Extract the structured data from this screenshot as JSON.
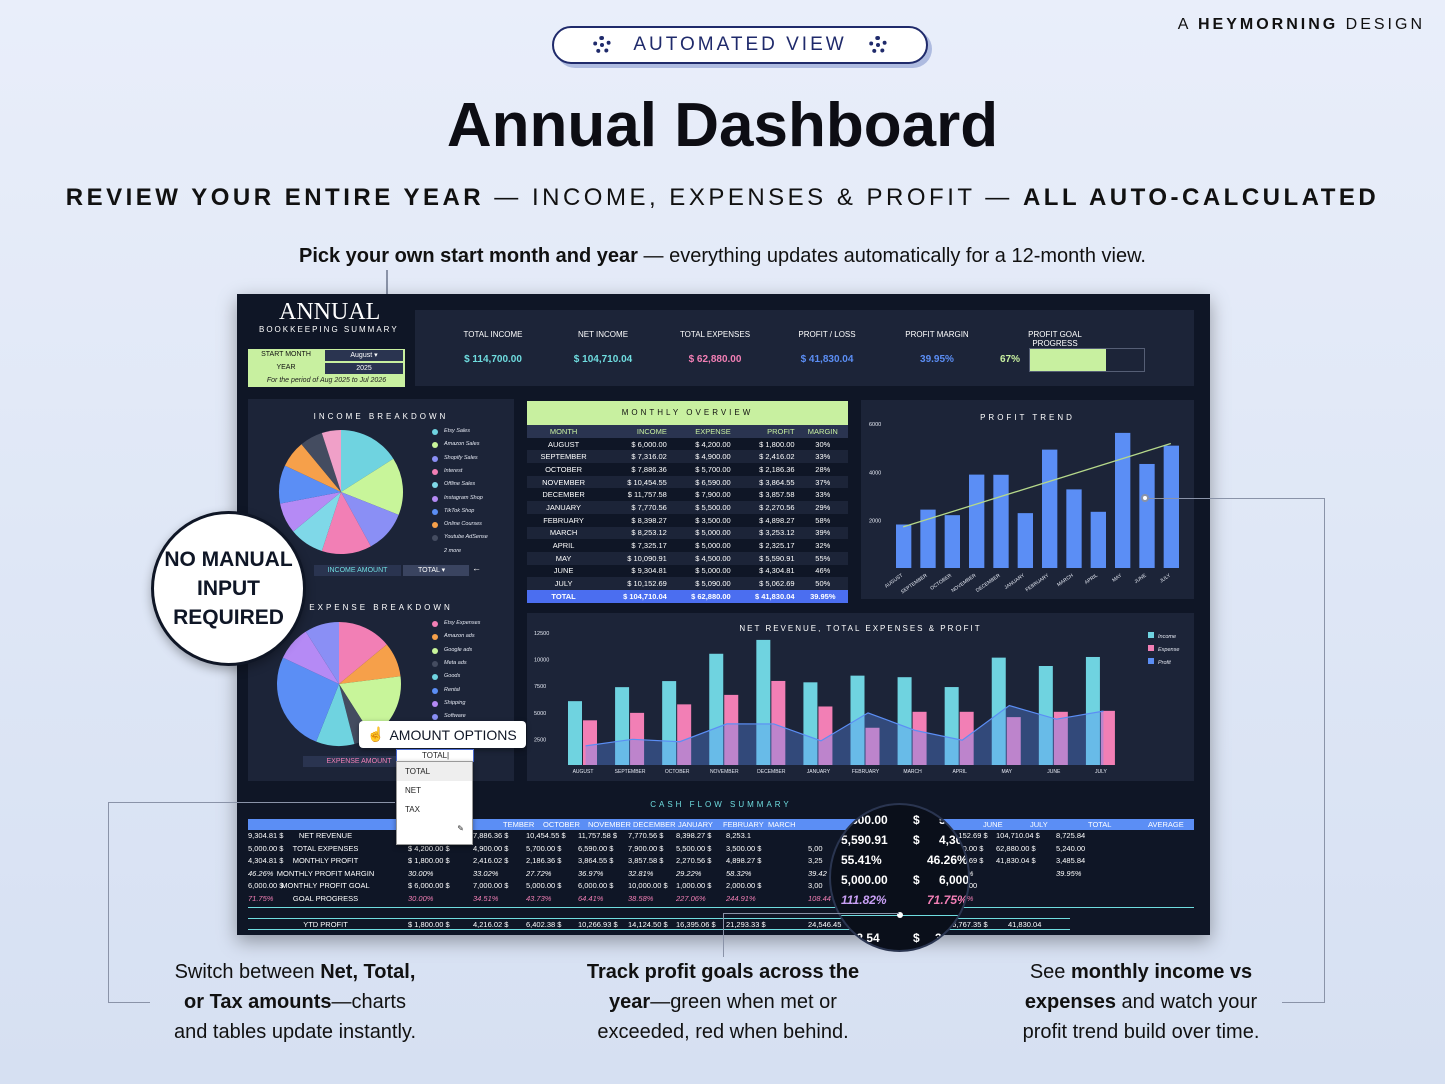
{
  "header": {
    "pill_label": "AUTOMATED VIEW",
    "brand_prefix": "A",
    "brand_name": "HEYMORNING",
    "brand_suffix": "DESIGN",
    "title": "Annual Dashboard",
    "subtitle_bold_1": "REVIEW YOUR ENTIRE YEAR",
    "subtitle_sep_1": " — ",
    "subtitle_mid": "INCOME, EXPENSES & PROFIT",
    "subtitle_sep_2": " — ",
    "subtitle_bold_2": "ALL AUTO-CALCULATED",
    "pick_bold": "Pick your own start month and year",
    "pick_rest": " — everything updates automatically for a 12-month view."
  },
  "dashboard": {
    "brand_title": "ANNUAL",
    "brand_sub": "BOOKKEEPING SUMMARY",
    "start_month_label": "START MONTH",
    "start_month_value": "August",
    "year_label": "YEAR",
    "year_value": "2025",
    "period_text": "For the period of Aug 2025 to Jul 2026",
    "kpis": [
      {
        "label": "TOTAL INCOME",
        "value": "$ 114,700.00",
        "color": "#6fdde0"
      },
      {
        "label": "NET INCOME",
        "value": "$ 104,710.04",
        "color": "#6fdde0"
      },
      {
        "label": "TOTAL EXPENSES",
        "value": "$ 62,880.00",
        "color": "#f27fb5"
      },
      {
        "label": "PROFIT / LOSS",
        "value": "$ 41,830.04",
        "color": "#5b8ef5"
      },
      {
        "label": "PROFIT MARGIN",
        "value": "39.95%",
        "color": "#5b8ef5"
      },
      {
        "label": "PROFIT GOAL PROGRESS",
        "value": "67%",
        "color": "#c8f0a0"
      }
    ],
    "profit_goal_progress": 0.67,
    "income_breakdown": {
      "title": "INCOME BREAKDOWN",
      "legend": [
        "Etsy Sales",
        "Amazon Sales",
        "Shopify Sales",
        "Interest",
        "Offline Sales",
        "Instagram Shop",
        "TikTok Shop",
        "Online Courses",
        "Youtube AdSense",
        "2 more"
      ],
      "colors": [
        "#6fd3e0",
        "#c8f59a",
        "#8a8ff5",
        "#f27fb5",
        "#7fd8e8",
        "#b58af5",
        "#5b8ef5",
        "#f6a04a",
        "#444c60",
        "#f0a0c8"
      ],
      "selector_label": "INCOME AMOUNT",
      "selector_value": "TOTAL"
    },
    "expense_breakdown": {
      "title": "EXPENSE BREAKDOWN",
      "legend": [
        "Etsy Expenses",
        "Amazon ads",
        "Google ads",
        "Meta ads",
        "Goods",
        "Rental",
        "Shipping",
        "Software"
      ],
      "colors": [
        "#f27fb5",
        "#f6a04a",
        "#c8f59a",
        "#444c60",
        "#6fd3e0",
        "#5b8ef5",
        "#b58af5",
        "#8a8ff5"
      ],
      "selector_label": "EXPENSE AMOUNT",
      "selector_value": "TOTAL"
    },
    "monthly_overview": {
      "title": "MONTHLY OVERVIEW",
      "headers": [
        "MONTH",
        "INCOME",
        "EXPENSE",
        "PROFIT",
        "MARGIN"
      ],
      "rows": [
        [
          "AUGUST",
          "6,000.00",
          "4,200.00",
          "1,800.00",
          "30%"
        ],
        [
          "SEPTEMBER",
          "7,316.02",
          "4,900.00",
          "2,416.02",
          "33%"
        ],
        [
          "OCTOBER",
          "7,886.36",
          "5,700.00",
          "2,186.36",
          "28%"
        ],
        [
          "NOVEMBER",
          "10,454.55",
          "6,590.00",
          "3,864.55",
          "37%"
        ],
        [
          "DECEMBER",
          "11,757.58",
          "7,900.00",
          "3,857.58",
          "33%"
        ],
        [
          "JANUARY",
          "7,770.56",
          "5,500.00",
          "2,270.56",
          "29%"
        ],
        [
          "FEBRUARY",
          "8,398.27",
          "3,500.00",
          "4,898.27",
          "58%"
        ],
        [
          "MARCH",
          "8,253.12",
          "5,000.00",
          "3,253.12",
          "39%"
        ],
        [
          "APRIL",
          "7,325.17",
          "5,000.00",
          "2,325.17",
          "32%"
        ],
        [
          "MAY",
          "10,090.91",
          "4,500.00",
          "5,590.91",
          "55%"
        ],
        [
          "JUNE",
          "9,304.81",
          "5,000.00",
          "4,304.81",
          "46%"
        ],
        [
          "JULY",
          "10,152.69",
          "5,090.00",
          "5,062.69",
          "50%"
        ]
      ],
      "total": [
        "TOTAL",
        "104,710.04",
        "62,880.00",
        "41,830.04",
        "39.95%"
      ]
    },
    "cash_flow": {
      "title": "CASH FLOW SUMMARY",
      "headers": [
        "TEMBER",
        "OCTOBER",
        "NOVEMBER",
        "DECEMBER",
        "JANUARY",
        "FEBRUARY",
        "MARCH",
        "",
        "",
        "JUNE",
        "JULY",
        "TOTAL",
        "AVERAGE"
      ],
      "row_labels": [
        "NET REVENUE",
        "TOTAL EXPENSES",
        "MONTHLY PROFIT",
        "MONTHLY PROFIT MARGIN",
        "MONTHLY PROFIT GOAL",
        "GOAL PROGRESS"
      ],
      "rows": [
        [
          "7,316.02 $",
          "7,886.36 $",
          "10,454.55 $",
          "11,757.58 $",
          "7,770.56 $",
          "8,398.27 $",
          "8,253.1",
          "",
          "",
          "9,304.81 $",
          "10,152.69 $",
          "104,710.04 $",
          "8,725.84"
        ],
        [
          "$ 4,200.00 $",
          "4,900.00 $",
          "5,700.00 $",
          "6,590.00 $",
          "7,900.00 $",
          "5,500.00 $",
          "3,500.00 $",
          "5,00",
          "",
          "5,000.00 $",
          "5,090.00 $",
          "62,880.00 $",
          "5,240.00"
        ],
        [
          "$ 1,800.00 $",
          "2,416.02 $",
          "2,186.36 $",
          "3,864.55 $",
          "3,857.58 $",
          "2,270.56 $",
          "4,898.27 $",
          "3,25",
          "",
          "4,304.81 $",
          "5,062.69 $",
          "41,830.04 $",
          "3,485.84"
        ],
        [
          "30.00%",
          "33.02%",
          "27.72%",
          "36.97%",
          "32.81%",
          "29.22%",
          "58.32%",
          "39.42",
          "",
          "46.26%",
          "49.87%",
          "",
          "39.95%"
        ],
        [
          "$ 6,000.00 $",
          "7,000.00 $",
          "5,000.00 $",
          "6,000.00 $",
          "10,000.00 $",
          "1,000.00 $",
          "2,000.00 $",
          "3,00",
          "",
          "6,000.00 $",
          "7,000.00",
          "",
          ""
        ],
        [
          "30.00%",
          "34.51%",
          "43.73%",
          "64.41%",
          "38.58%",
          "227.06%",
          "244.91%",
          "108.44",
          "",
          "71.75%",
          "72.32%",
          "",
          ""
        ]
      ],
      "ytd_label": "YTD PROFIT",
      "ytd_values": [
        "$ 1,800.00 $",
        "4,216.02 $",
        "6,402.38 $",
        "10,266.93 $",
        "14,124.50 $",
        "16,395.06 $",
        "21,293.33 $",
        "24,546.45",
        "",
        "",
        "36,767.35 $",
        "41,830.04"
      ]
    },
    "magnifier": {
      "rows": [
        [
          "4,500.00",
          "$",
          "5"
        ],
        [
          "5,590.91",
          "$",
          "4,30"
        ],
        [
          "55.41%",
          "",
          "46.26%"
        ],
        [
          "5,000.00",
          "$",
          "6,000."
        ],
        [
          "111.82%",
          "",
          "71.75%"
        ]
      ],
      "bottom": "462.54",
      "bottom_prefix": "$",
      "bottom_suffix": "36"
    },
    "profit_trend": {
      "title": "PROFIT TREND"
    },
    "net_revenue_chart": {
      "title": "NET REVENUE, TOTAL EXPENSES & PROFIT",
      "legend": [
        "Income",
        "Expense",
        "Profit"
      ]
    }
  },
  "chart_data": [
    {
      "type": "bar",
      "title": "PROFIT TREND",
      "categories": [
        "AUGUST",
        "SEPTEMBER",
        "OCTOBER",
        "NOVEMBER",
        "DECEMBER",
        "JANUARY",
        "FEBRUARY",
        "MARCH",
        "APRIL",
        "MAY",
        "JUNE",
        "JULY"
      ],
      "values": [
        1800.0,
        2416.02,
        2186.36,
        3864.55,
        3857.58,
        2270.56,
        4898.27,
        3253.12,
        2325.17,
        5590.91,
        4304.81,
        5062.69
      ],
      "ylim": [
        0,
        6000
      ],
      "yticks": [
        "0",
        "2000",
        "4000",
        "6000"
      ],
      "trendline": true,
      "bar_color": "#5b8ef5"
    },
    {
      "type": "bar",
      "title": "NET REVENUE, TOTAL EXPENSES & PROFIT",
      "categories": [
        "AUGUST",
        "SEPTEMBER",
        "OCTOBER",
        "NOVEMBER",
        "DECEMBER",
        "JANUARY",
        "FEBRUARY",
        "MARCH",
        "APRIL",
        "MAY",
        "JUNE",
        "JULY"
      ],
      "series": [
        {
          "name": "Income",
          "values": [
            6000.0,
            7316.02,
            7886.36,
            10454.55,
            11757.58,
            7770.56,
            8398.27,
            8253.12,
            7325.17,
            10090.91,
            9304.81,
            10152.69
          ],
          "color": "#6fd3e0"
        },
        {
          "name": "Expense",
          "values": [
            4200,
            4900,
            5700,
            6590,
            7900,
            5500,
            3500,
            5000,
            5000,
            4500,
            5000,
            5090
          ],
          "color": "#f27fb5"
        },
        {
          "name": "Profit",
          "values": [
            1800.0,
            2416.02,
            2186.36,
            3864.55,
            3857.58,
            2270.56,
            4898.27,
            3253.12,
            2325.17,
            5590.91,
            4304.81,
            5062.69
          ],
          "color": "#5b8ef5"
        }
      ],
      "ylim": [
        0,
        12500
      ],
      "yticks": [
        "0",
        "2500",
        "5000",
        "7500",
        "10000",
        "12500"
      ]
    },
    {
      "type": "pie",
      "title": "INCOME BREAKDOWN",
      "labels": [
        "Etsy Sales",
        "Amazon Sales",
        "Shopify Sales",
        "Interest",
        "Offline Sales",
        "Instagram Shop",
        "TikTok Shop",
        "Online Courses",
        "Youtube AdSense",
        "2 more"
      ],
      "values": [
        16,
        15,
        11,
        13,
        9,
        8,
        10,
        7,
        6,
        5
      ]
    },
    {
      "type": "pie",
      "title": "EXPENSE BREAKDOWN",
      "labels": [
        "Etsy Expenses",
        "Amazon ads",
        "Google ads",
        "Meta ads",
        "Goods",
        "Rental",
        "Shipping",
        "Software"
      ],
      "values": [
        14,
        9,
        18,
        5,
        10,
        26,
        9,
        9
      ]
    }
  ],
  "overlays": {
    "badge": [
      "NO MANUAL",
      "INPUT",
      "REQUIRED"
    ],
    "amount_options": "AMOUNT OPTIONS",
    "dropdown_current": "TOTAL",
    "dropdown_options": [
      "TOTAL",
      "NET",
      "TAX"
    ]
  },
  "callouts": {
    "left": {
      "pre": "Switch between ",
      "bold": "Net, Total,",
      "line2_bold": "or Tax amounts",
      "line2_rest": "—charts",
      "line3": "and tables update instantly."
    },
    "middle": {
      "bold1": "Track profit goals across the",
      "bold2": "year",
      "rest2": "—green when met or",
      "line3": "exceeded, red when behind."
    },
    "right": {
      "pre": "See ",
      "bold1": "monthly income vs",
      "bold2": "expenses",
      "rest2": " and watch your",
      "line3": "profit trend build over time."
    }
  }
}
